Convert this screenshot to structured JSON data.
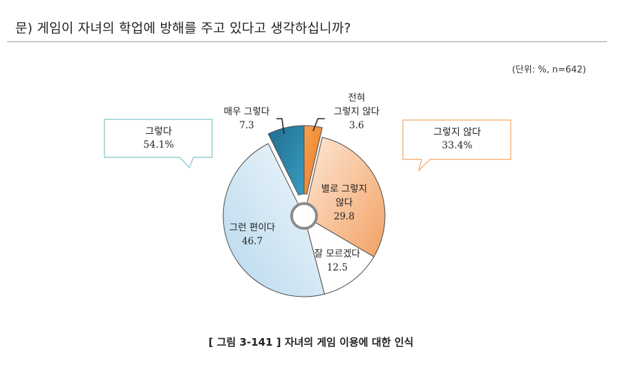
{
  "question": "문) 게임이 자녀의 학업에 방해를 주고 있다고 생각하십니까?",
  "unit_note": "(단위: %, n=642)",
  "caption": "[ 그림 3-141 ] 자녀의 게임 이용에 대한 인식",
  "summary_callouts": {
    "positive": {
      "label": "그렇다",
      "value": "54.1%"
    },
    "negative": {
      "label": "그렇지 않다",
      "value": "33.4%"
    }
  },
  "colors": {
    "very_yes": "#2a89ad",
    "yes": "#cfe6f4",
    "dont_know": "#ffffff",
    "no": "#f6b888",
    "not_at_all": "#f28a30",
    "blue_callout_border": "#7fc4c9",
    "orange_callout_border": "#f4a462"
  },
  "chart_data": {
    "type": "pie",
    "title": "",
    "donut": true,
    "start": "top, clockwise",
    "slices": [
      {
        "label": "전혀 그렇지 않다",
        "value": 3.6,
        "color": "#f28a30"
      },
      {
        "label": "별로 그렇지 않다",
        "value": 29.8,
        "color": "#f6b888"
      },
      {
        "label": "잘 모르겠다",
        "value": 12.5,
        "color": "#ffffff"
      },
      {
        "label": "그런 편이다",
        "value": 46.7,
        "color": "#cfe6f4"
      },
      {
        "label": "매우 그렇다",
        "value": 7.3,
        "color": "#2a89ad"
      }
    ]
  }
}
